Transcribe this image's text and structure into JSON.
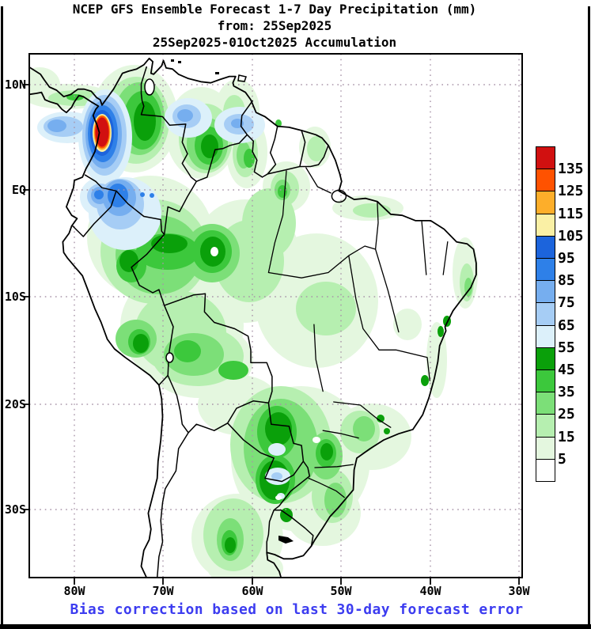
{
  "title": {
    "line1": "NCEP GFS Ensemble Forecast 1-7 Day Precipitation (mm)",
    "line2": "from: 25Sep2025",
    "line3": "25Sep2025-01Oct2025 Accumulation"
  },
  "caption": {
    "text": "Bias correction based on last 30-day forecast error",
    "color": "#3C3CF0"
  },
  "map": {
    "y_axis": {
      "labels": [
        "10N",
        "EQ",
        "10S",
        "20S",
        "30S"
      ]
    },
    "x_axis": {
      "labels": [
        "80W",
        "70W",
        "60W",
        "50W",
        "40W",
        "30W"
      ]
    }
  },
  "legend": {
    "values": [
      "135",
      "125",
      "115",
      "105",
      "95",
      "85",
      "75",
      "65",
      "55",
      "45",
      "35",
      "25",
      "15",
      "5"
    ],
    "palette_low_to_high": [
      "#FFFFFF",
      "#E4F7DF",
      "#B6EFB0",
      "#7CDF78",
      "#3CC83C",
      "#0AA00A",
      "#DCF0FA",
      "#A6CDF5",
      "#76AEEF",
      "#2E80E8",
      "#1C64DC",
      "#FAF0A5",
      "#FDAE2A",
      "#FF5200",
      "#D11010"
    ]
  },
  "chart_data": {
    "type": "heatmap",
    "subtype": "filled_contour_precipitation_map",
    "title": "NCEP GFS Ensemble Forecast 1-7 Day Precipitation (mm)",
    "init_date": "25Sep2025",
    "valid_period": "25Sep2025-01Oct2025 Accumulation",
    "units": "mm",
    "region": "South America",
    "lon_range_deg": [
      -85,
      -30
    ],
    "lat_range_deg": [
      -36.5,
      12.8
    ],
    "lat_ticks": [
      "10N",
      "EQ",
      "10S",
      "20S",
      "30S"
    ],
    "lon_ticks": [
      "80W",
      "70W",
      "60W",
      "50W",
      "40W",
      "30W"
    ],
    "gridline_interval_deg": 10,
    "grid_style": "dotted",
    "contour_levels_mm": [
      5,
      15,
      25,
      35,
      45,
      55,
      65,
      75,
      85,
      95,
      105,
      115,
      125,
      135
    ],
    "colorbar_position": "right",
    "annotation": "Bias correction based on last 30-day forecast error",
    "features": [
      {
        "area": "Pacific coast of Colombia (~77W, 5N)",
        "value_mm": "> 135 (map maximum, red core with 105-135 ring)"
      },
      {
        "area": "Panama / SW Caribbean",
        "value_mm": "55-95"
      },
      {
        "area": "Northern Colombia coast (~74W, 10N)",
        "value_mm": "55-85"
      },
      {
        "area": "North-central Venezuela (~63W, 8N)",
        "value_mm": "55-75"
      },
      {
        "area": "NW Amazon / S Colombia - N Peru (~73W, 1S)",
        "value_mm": "55-95"
      },
      {
        "area": "Pacific coast near Ecuador-Colombia border (~79W, 2S)",
        "value_mm": "55-95"
      },
      {
        "area": "Western and central Amazon (Peru-Brazil border)",
        "value_mm": "25-55"
      },
      {
        "area": "Central Amazon dark-green cells (~64W, 6S)",
        "value_mm": "45-55"
      },
      {
        "area": "SE Peru / N Bolivia",
        "value_mm": "25-55"
      },
      {
        "area": "S Brazil / E Paraguay / Misiones (NE Argentina)",
        "value_mm": "45-65 (small 55-65 pale-blue cores)"
      },
      {
        "area": "NE Argentina (~60W, 33S)",
        "value_mm": "25-55"
      },
      {
        "area": "French Guiana",
        "value_mm": "15-35"
      },
      {
        "area": "Amapa / NE Para (Brazil)",
        "value_mm": "15-45"
      },
      {
        "area": "East coast of NE Brazil",
        "value_mm": "5-35"
      },
      {
        "area": "Interior NE Brazil, Venezuelan llanos, Guyana-Suriname, Pacific coast of Peru/Chile, central Argentina",
        "value_mm": "0-5"
      }
    ]
  }
}
